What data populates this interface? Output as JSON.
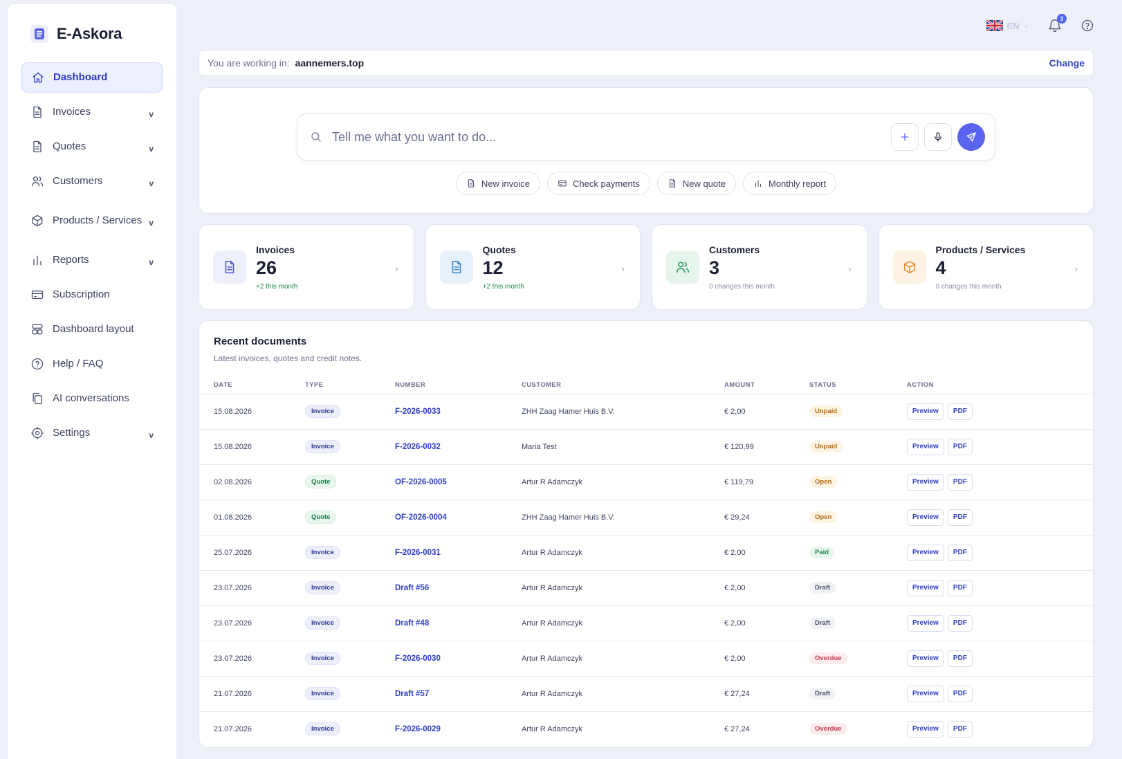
{
  "brand": {
    "name": "E-Askora"
  },
  "sidebar": {
    "items": [
      {
        "label": "Dashboard",
        "icon": "home-icon",
        "active": true,
        "chevron": ""
      },
      {
        "label": "Invoices",
        "icon": "document-icon",
        "active": false,
        "chevron": "v"
      },
      {
        "label": "Quotes",
        "icon": "document-icon",
        "active": false,
        "chevron": "v"
      },
      {
        "label": "Customers",
        "icon": "users-icon",
        "active": false,
        "chevron": "v"
      },
      {
        "label": "Products / Services",
        "icon": "box-icon",
        "active": false,
        "chevron": "v"
      },
      {
        "label": "Reports",
        "icon": "bar-chart-icon",
        "active": false,
        "chevron": "v"
      },
      {
        "label": "Subscription",
        "icon": "credit-card-icon",
        "active": false,
        "chevron": ""
      },
      {
        "label": "Dashboard layout",
        "icon": "layout-icon",
        "active": false,
        "chevron": ""
      },
      {
        "label": "Help / FAQ",
        "icon": "help-icon",
        "active": false,
        "chevron": ""
      },
      {
        "label": "AI conversations",
        "icon": "copy-icon",
        "active": false,
        "chevron": ""
      },
      {
        "label": "Settings",
        "icon": "gear-icon",
        "active": false,
        "chevron": "v"
      }
    ]
  },
  "topbar": {
    "language_code": "EN",
    "language_flag": "uk-flag-icon",
    "notification_count": "3"
  },
  "workspace": {
    "label": "You are working in:",
    "domain": "aannemers.top",
    "change_label": "Change"
  },
  "assistant": {
    "placeholder": "Tell me what you want to do...",
    "chips": [
      {
        "label": "New invoice",
        "icon": "document-icon"
      },
      {
        "label": "Check payments",
        "icon": "credit-card-icon"
      },
      {
        "label": "New quote",
        "icon": "document-icon"
      },
      {
        "label": "Monthly report",
        "icon": "bar-chart-icon"
      }
    ]
  },
  "stats": [
    {
      "title": "Invoices",
      "value": "26",
      "sub": "+2 this month",
      "tone": "green",
      "icon": "document-icon",
      "icon_bg": "#eeeffc",
      "icon_color": "#4e56c8"
    },
    {
      "title": "Quotes",
      "value": "12",
      "sub": "+2 this month",
      "tone": "green",
      "icon": "document-icon",
      "icon_bg": "#e7f1fb",
      "icon_color": "#3a86c9"
    },
    {
      "title": "Customers",
      "value": "3",
      "sub": "0 changes this month",
      "tone": "gray",
      "icon": "users-icon",
      "icon_bg": "#e6f5ec",
      "icon_color": "#2f9a5e"
    },
    {
      "title": "Products / Services",
      "value": "4",
      "sub": "0 changes this month",
      "tone": "gray",
      "icon": "box-icon",
      "icon_bg": "#fdf1e3",
      "icon_color": "#e08a2c"
    }
  ],
  "recent": {
    "title": "Recent documents",
    "subtitle": "Latest invoices, quotes and credit notes.",
    "columns": [
      "DATE",
      "TYPE",
      "NUMBER",
      "CUSTOMER",
      "AMOUNT",
      "STATUS",
      "ACTION"
    ],
    "preview_label": "Preview",
    "pdf_label": "PDF",
    "rows": [
      {
        "date": "15.08.2026",
        "type": "Invoice",
        "number": "F-2026-0033",
        "customer": "ZHH Zaag Hamer Huis B.V.",
        "amount": "€ 2,00",
        "status": "Unpaid"
      },
      {
        "date": "15.08.2026",
        "type": "Invoice",
        "number": "F-2026-0032",
        "customer": "Maria Test",
        "amount": "€ 120,99",
        "status": "Unpaid"
      },
      {
        "date": "02.08.2026",
        "type": "Quote",
        "number": "OF-2026-0005",
        "customer": "Artur R Adamczyk",
        "amount": "€ 119,79",
        "status": "Open"
      },
      {
        "date": "01.08.2026",
        "type": "Quote",
        "number": "OF-2026-0004",
        "customer": "ZHH Zaag Hamer Huis B.V.",
        "amount": "€ 29,24",
        "status": "Open"
      },
      {
        "date": "25.07.2026",
        "type": "Invoice",
        "number": "F-2026-0031",
        "customer": "Artur R Adamczyk",
        "amount": "€ 2,00",
        "status": "Paid"
      },
      {
        "date": "23.07.2026",
        "type": "Invoice",
        "number": "Draft #56",
        "customer": "Artur R Adamczyk",
        "amount": "€ 2,00",
        "status": "Draft"
      },
      {
        "date": "23.07.2026",
        "type": "Invoice",
        "number": "Draft #48",
        "customer": "Artur R Adamczyk",
        "amount": "€ 2,00",
        "status": "Draft"
      },
      {
        "date": "23.07.2026",
        "type": "Invoice",
        "number": "F-2026-0030",
        "customer": "Artur R Adamczyk",
        "amount": "€ 2,00",
        "status": "Overdue"
      },
      {
        "date": "21.07.2026",
        "type": "Invoice",
        "number": "Draft #57",
        "customer": "Artur R Adamczyk",
        "amount": "€ 27,24",
        "status": "Draft"
      },
      {
        "date": "21.07.2026",
        "type": "Invoice",
        "number": "F-2026-0029",
        "customer": "Artur R Adamczyk",
        "amount": "€ 27,24",
        "status": "Overdue"
      }
    ]
  }
}
